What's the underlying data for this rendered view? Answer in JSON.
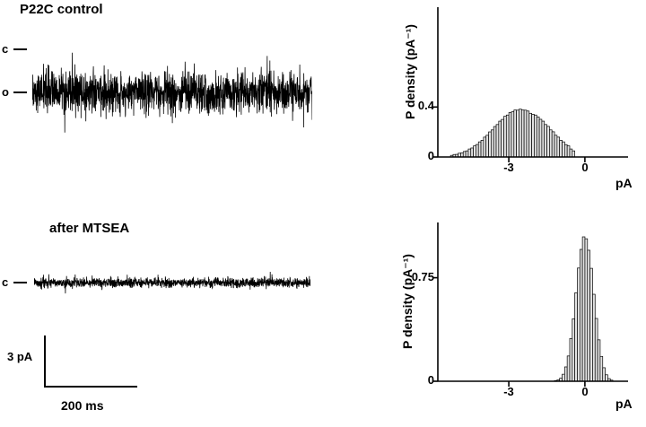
{
  "colors": {
    "background": "#ffffff",
    "ink": "#000000",
    "bar_fill": "#e3e3e3"
  },
  "panels": {
    "control": {
      "title": "P22C control",
      "level_labels": [
        "c",
        "o"
      ]
    },
    "mtsea": {
      "title": "after MTSEA",
      "level_labels": [
        "c"
      ]
    }
  },
  "scale_bar": {
    "amplitude_label": "3 pA",
    "time_label": "200 ms"
  },
  "chart_data": [
    {
      "type": "line",
      "name": "control-current-trace",
      "title": "P22C control single-channel current trace",
      "x_units": "ms",
      "y_units": "pA",
      "levels_marked": [
        "c (closed)",
        "o (open)"
      ],
      "baseline_level": "o",
      "approx_open_current_pA": -2.5,
      "approx_noise_peak_to_peak_pA": 3,
      "scale_bar": {
        "y": "3 pA",
        "x": "200 ms"
      }
    },
    {
      "type": "bar",
      "name": "control-amplitude-histogram",
      "xlabel": "pA",
      "ylabel": "P density (pA⁻¹)",
      "xlim": [
        -5.8,
        1.7
      ],
      "ylim": [
        0,
        1.2
      ],
      "xtick_values": [
        -3,
        0
      ],
      "xtick_labels": [
        "-3",
        "0"
      ],
      "ytick_values": [
        0.4,
        0
      ],
      "ytick_labels": [
        "0.4",
        "0"
      ],
      "first_center": -5.25,
      "bin_width": 0.1,
      "peak_pA": -2.55,
      "peak_density": 0.38,
      "values": [
        0.013,
        0.02,
        0.021,
        0.03,
        0.033,
        0.044,
        0.049,
        0.064,
        0.072,
        0.089,
        0.1,
        0.121,
        0.134,
        0.159,
        0.174,
        0.201,
        0.217,
        0.244,
        0.26,
        0.287,
        0.301,
        0.326,
        0.336,
        0.356,
        0.362,
        0.376,
        0.375,
        0.383,
        0.376,
        0.375,
        0.368,
        0.35,
        0.342,
        0.336,
        0.321,
        0.302,
        0.287,
        0.26,
        0.245,
        0.217,
        0.202,
        0.174,
        0.159,
        0.134,
        0.121,
        0.099,
        0.089,
        0.064,
        0.049
      ]
    },
    {
      "type": "line",
      "name": "mtsea-current-trace",
      "title": "after MTSEA single-channel current trace",
      "x_units": "ms",
      "y_units": "pA",
      "levels_marked": [
        "c (closed)"
      ],
      "baseline_level": "c",
      "approx_current_pA": 0,
      "approx_noise_peak_to_peak_pA": 0.8,
      "scale_bar": {
        "y": "3 pA",
        "x": "200 ms"
      }
    },
    {
      "type": "bar",
      "name": "mtsea-amplitude-histogram",
      "xlabel": "pA",
      "ylabel": "P density (pA⁻¹)",
      "xlim": [
        -5.8,
        1.7
      ],
      "ylim": [
        0,
        1.15
      ],
      "xtick_values": [
        -3,
        0
      ],
      "xtick_labels": [
        "-3",
        "0"
      ],
      "ytick_values": [
        0.75,
        0
      ],
      "ytick_labels": [
        "0.75",
        "0"
      ],
      "first_center": -1.15,
      "bin_width": 0.1,
      "peak_pA": -0.05,
      "peak_density": 1.05,
      "values": [
        0.005,
        0.01,
        0.022,
        0.051,
        0.104,
        0.183,
        0.31,
        0.452,
        0.641,
        0.82,
        0.955,
        1.046,
        1.032,
        0.949,
        0.818,
        0.63,
        0.455,
        0.3,
        0.18,
        0.098,
        0.047,
        0.019,
        0.008
      ]
    }
  ]
}
